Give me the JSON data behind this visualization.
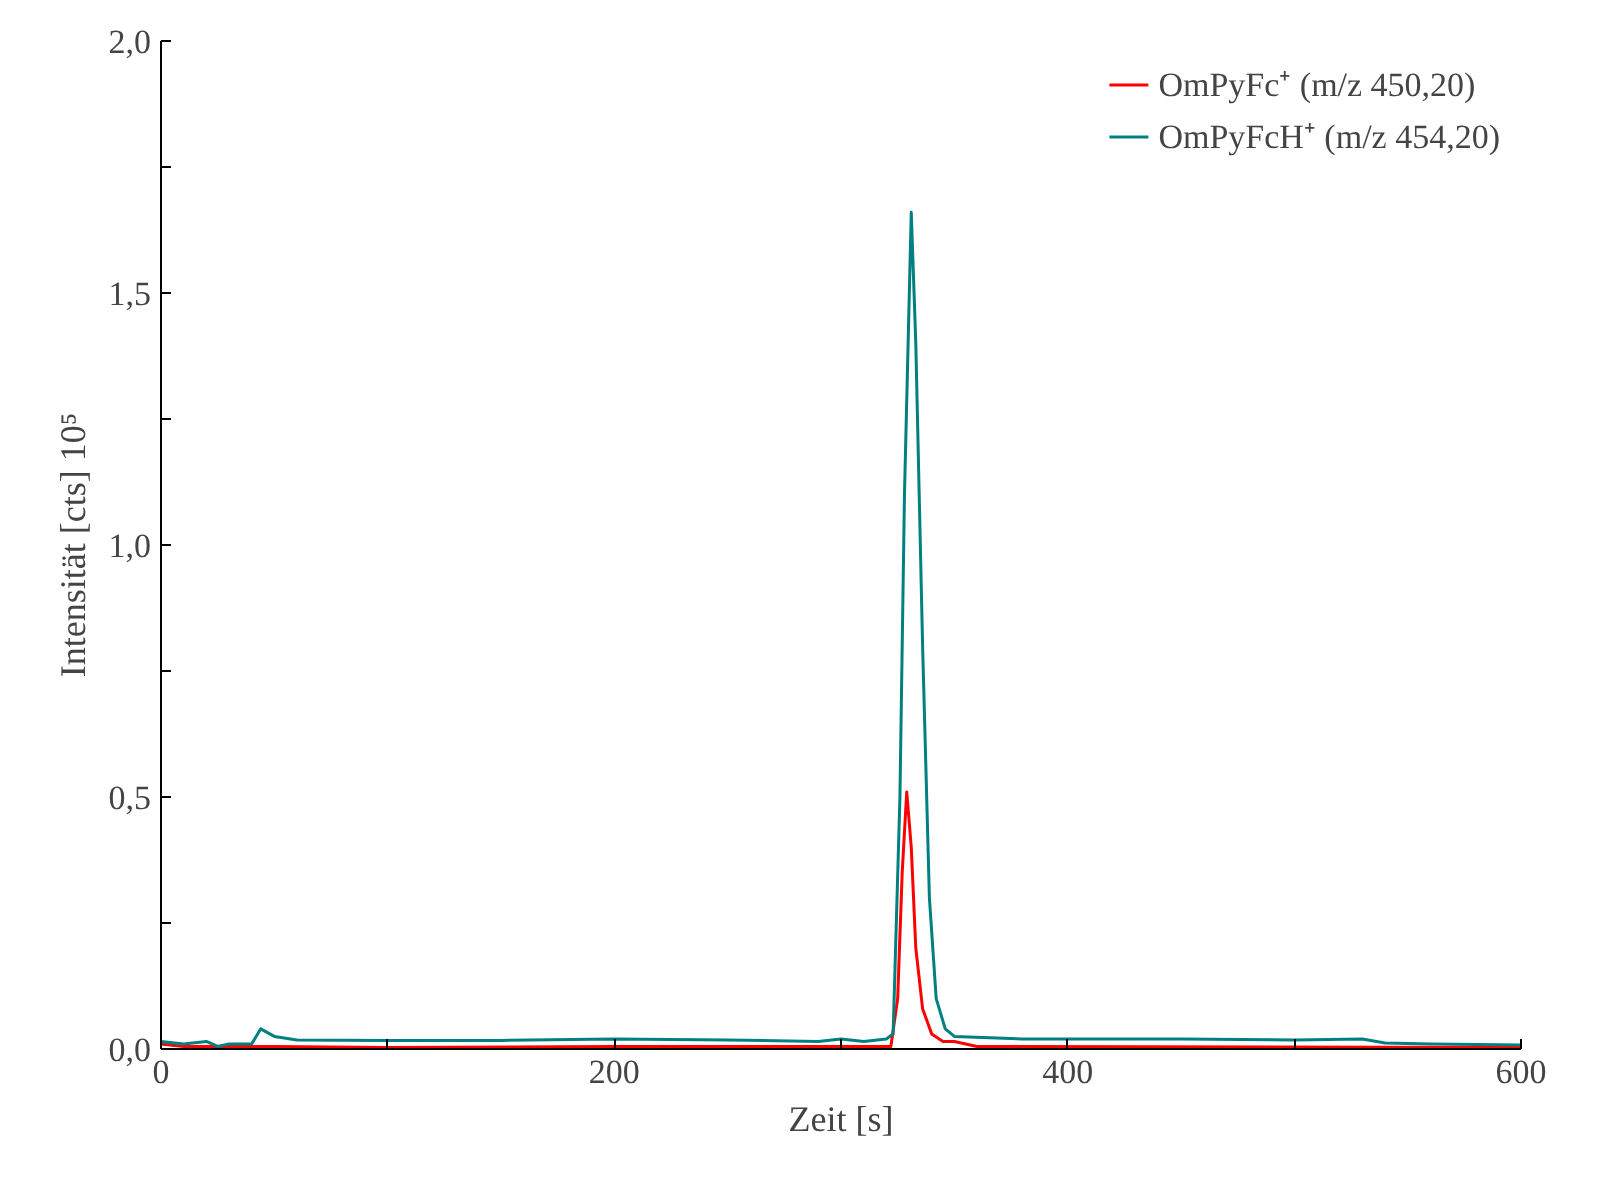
{
  "chart_data": {
    "type": "line",
    "xlabel": "Zeit [s]",
    "ylabel": "Intensität [cts] 10⁵",
    "xlim": [
      0,
      600
    ],
    "ylim": [
      0,
      2.0
    ],
    "xticks": [
      0,
      {
        "value": 100,
        "label": null
      },
      200,
      {
        "value": 300,
        "label": null
      },
      400,
      {
        "value": 500,
        "label": null
      },
      600
    ],
    "yticks": [
      {
        "value": 0,
        "label": "0,0"
      },
      {
        "value": 0.25,
        "label": null
      },
      {
        "value": 0.5,
        "label": "0,5"
      },
      {
        "value": 0.75,
        "label": null
      },
      {
        "value": 1.0,
        "label": "1,0"
      },
      {
        "value": 1.25,
        "label": null
      },
      {
        "value": 1.5,
        "label": "1,5"
      },
      {
        "value": 1.75,
        "label": null
      },
      {
        "value": 2.0,
        "label": "2,0"
      }
    ],
    "grid": false,
    "legend": "top right",
    "marker": "none",
    "line_style": "solid",
    "series": [
      {
        "name": "OmPyFc⁺ (m/z 450,20)",
        "color": "#ff0000",
        "x": [
          0,
          10,
          50,
          100,
          200,
          300,
          322,
          325,
          327,
          329,
          331,
          333,
          336,
          340,
          345,
          350,
          360,
          600
        ],
        "values": [
          0.01,
          0.005,
          0.005,
          0.003,
          0.005,
          0.005,
          0.005,
          0.1,
          0.35,
          0.51,
          0.4,
          0.2,
          0.08,
          0.03,
          0.015,
          0.015,
          0.005,
          0.003
        ]
      },
      {
        "name": "OmPyFcH⁺ (m/z 454,20)",
        "color": "#008080",
        "x": [
          0,
          10,
          20,
          25,
          30,
          40,
          44,
          50,
          60,
          100,
          150,
          200,
          250,
          290,
          300,
          310,
          320,
          323,
          326,
          328,
          331,
          333,
          336,
          339,
          342,
          346,
          350,
          380,
          400,
          450,
          500,
          530,
          540,
          560,
          600
        ],
        "values": [
          0.015,
          0.01,
          0.015,
          0.005,
          0.01,
          0.01,
          0.04,
          0.025,
          0.018,
          0.017,
          0.017,
          0.02,
          0.018,
          0.015,
          0.02,
          0.015,
          0.02,
          0.03,
          0.5,
          1.1,
          1.66,
          1.4,
          0.8,
          0.3,
          0.1,
          0.04,
          0.025,
          0.02,
          0.02,
          0.02,
          0.018,
          0.02,
          0.012,
          0.01,
          0.008
        ]
      }
    ]
  }
}
